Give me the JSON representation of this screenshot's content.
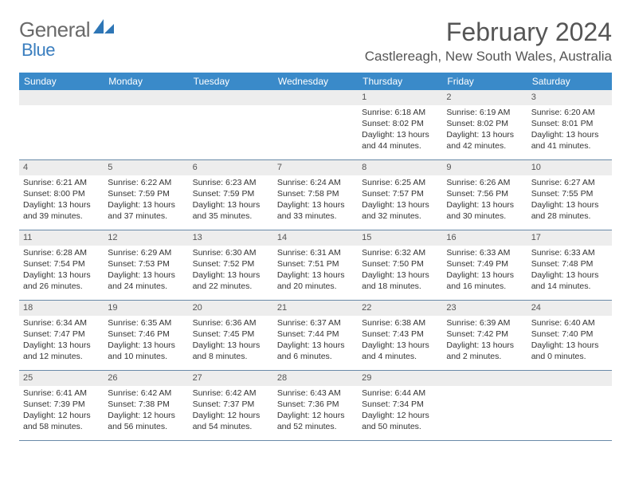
{
  "logo": {
    "text1": "General",
    "text2": "Blue"
  },
  "title": "February 2024",
  "location": "Castlereagh, New South Wales, Australia",
  "colors": {
    "header_bg": "#3a8ac9",
    "header_text": "#ffffff",
    "daynum_bg": "#ededed",
    "body_text": "#333333",
    "border": "#6a8aa8",
    "logo_gray": "#6a6a6a",
    "logo_blue": "#3a7ebf"
  },
  "weekdays": [
    "Sunday",
    "Monday",
    "Tuesday",
    "Wednesday",
    "Thursday",
    "Friday",
    "Saturday"
  ],
  "weeks": [
    [
      {
        "n": "",
        "sr": "",
        "ss": "",
        "dl": ""
      },
      {
        "n": "",
        "sr": "",
        "ss": "",
        "dl": ""
      },
      {
        "n": "",
        "sr": "",
        "ss": "",
        "dl": ""
      },
      {
        "n": "",
        "sr": "",
        "ss": "",
        "dl": ""
      },
      {
        "n": "1",
        "sr": "Sunrise: 6:18 AM",
        "ss": "Sunset: 8:02 PM",
        "dl": "Daylight: 13 hours and 44 minutes."
      },
      {
        "n": "2",
        "sr": "Sunrise: 6:19 AM",
        "ss": "Sunset: 8:02 PM",
        "dl": "Daylight: 13 hours and 42 minutes."
      },
      {
        "n": "3",
        "sr": "Sunrise: 6:20 AM",
        "ss": "Sunset: 8:01 PM",
        "dl": "Daylight: 13 hours and 41 minutes."
      }
    ],
    [
      {
        "n": "4",
        "sr": "Sunrise: 6:21 AM",
        "ss": "Sunset: 8:00 PM",
        "dl": "Daylight: 13 hours and 39 minutes."
      },
      {
        "n": "5",
        "sr": "Sunrise: 6:22 AM",
        "ss": "Sunset: 7:59 PM",
        "dl": "Daylight: 13 hours and 37 minutes."
      },
      {
        "n": "6",
        "sr": "Sunrise: 6:23 AM",
        "ss": "Sunset: 7:59 PM",
        "dl": "Daylight: 13 hours and 35 minutes."
      },
      {
        "n": "7",
        "sr": "Sunrise: 6:24 AM",
        "ss": "Sunset: 7:58 PM",
        "dl": "Daylight: 13 hours and 33 minutes."
      },
      {
        "n": "8",
        "sr": "Sunrise: 6:25 AM",
        "ss": "Sunset: 7:57 PM",
        "dl": "Daylight: 13 hours and 32 minutes."
      },
      {
        "n": "9",
        "sr": "Sunrise: 6:26 AM",
        "ss": "Sunset: 7:56 PM",
        "dl": "Daylight: 13 hours and 30 minutes."
      },
      {
        "n": "10",
        "sr": "Sunrise: 6:27 AM",
        "ss": "Sunset: 7:55 PM",
        "dl": "Daylight: 13 hours and 28 minutes."
      }
    ],
    [
      {
        "n": "11",
        "sr": "Sunrise: 6:28 AM",
        "ss": "Sunset: 7:54 PM",
        "dl": "Daylight: 13 hours and 26 minutes."
      },
      {
        "n": "12",
        "sr": "Sunrise: 6:29 AM",
        "ss": "Sunset: 7:53 PM",
        "dl": "Daylight: 13 hours and 24 minutes."
      },
      {
        "n": "13",
        "sr": "Sunrise: 6:30 AM",
        "ss": "Sunset: 7:52 PM",
        "dl": "Daylight: 13 hours and 22 minutes."
      },
      {
        "n": "14",
        "sr": "Sunrise: 6:31 AM",
        "ss": "Sunset: 7:51 PM",
        "dl": "Daylight: 13 hours and 20 minutes."
      },
      {
        "n": "15",
        "sr": "Sunrise: 6:32 AM",
        "ss": "Sunset: 7:50 PM",
        "dl": "Daylight: 13 hours and 18 minutes."
      },
      {
        "n": "16",
        "sr": "Sunrise: 6:33 AM",
        "ss": "Sunset: 7:49 PM",
        "dl": "Daylight: 13 hours and 16 minutes."
      },
      {
        "n": "17",
        "sr": "Sunrise: 6:33 AM",
        "ss": "Sunset: 7:48 PM",
        "dl": "Daylight: 13 hours and 14 minutes."
      }
    ],
    [
      {
        "n": "18",
        "sr": "Sunrise: 6:34 AM",
        "ss": "Sunset: 7:47 PM",
        "dl": "Daylight: 13 hours and 12 minutes."
      },
      {
        "n": "19",
        "sr": "Sunrise: 6:35 AM",
        "ss": "Sunset: 7:46 PM",
        "dl": "Daylight: 13 hours and 10 minutes."
      },
      {
        "n": "20",
        "sr": "Sunrise: 6:36 AM",
        "ss": "Sunset: 7:45 PM",
        "dl": "Daylight: 13 hours and 8 minutes."
      },
      {
        "n": "21",
        "sr": "Sunrise: 6:37 AM",
        "ss": "Sunset: 7:44 PM",
        "dl": "Daylight: 13 hours and 6 minutes."
      },
      {
        "n": "22",
        "sr": "Sunrise: 6:38 AM",
        "ss": "Sunset: 7:43 PM",
        "dl": "Daylight: 13 hours and 4 minutes."
      },
      {
        "n": "23",
        "sr": "Sunrise: 6:39 AM",
        "ss": "Sunset: 7:42 PM",
        "dl": "Daylight: 13 hours and 2 minutes."
      },
      {
        "n": "24",
        "sr": "Sunrise: 6:40 AM",
        "ss": "Sunset: 7:40 PM",
        "dl": "Daylight: 13 hours and 0 minutes."
      }
    ],
    [
      {
        "n": "25",
        "sr": "Sunrise: 6:41 AM",
        "ss": "Sunset: 7:39 PM",
        "dl": "Daylight: 12 hours and 58 minutes."
      },
      {
        "n": "26",
        "sr": "Sunrise: 6:42 AM",
        "ss": "Sunset: 7:38 PM",
        "dl": "Daylight: 12 hours and 56 minutes."
      },
      {
        "n": "27",
        "sr": "Sunrise: 6:42 AM",
        "ss": "Sunset: 7:37 PM",
        "dl": "Daylight: 12 hours and 54 minutes."
      },
      {
        "n": "28",
        "sr": "Sunrise: 6:43 AM",
        "ss": "Sunset: 7:36 PM",
        "dl": "Daylight: 12 hours and 52 minutes."
      },
      {
        "n": "29",
        "sr": "Sunrise: 6:44 AM",
        "ss": "Sunset: 7:34 PM",
        "dl": "Daylight: 12 hours and 50 minutes."
      },
      {
        "n": "",
        "sr": "",
        "ss": "",
        "dl": ""
      },
      {
        "n": "",
        "sr": "",
        "ss": "",
        "dl": ""
      }
    ]
  ]
}
